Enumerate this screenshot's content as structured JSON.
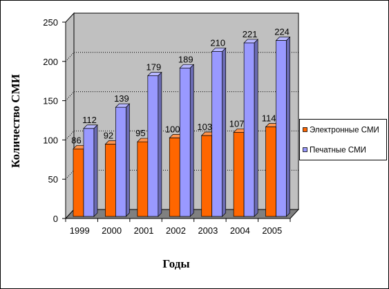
{
  "chart_data": {
    "type": "bar",
    "three_d": true,
    "categories": [
      "1999",
      "2000",
      "2001",
      "2002",
      "2003",
      "2004",
      "2005"
    ],
    "series": [
      {
        "name": "Электронные СМИ",
        "values": [
          86,
          92,
          95,
          100,
          103,
          107,
          114
        ],
        "color": "#FF6600"
      },
      {
        "name": "Печатные СМИ",
        "values": [
          112,
          139,
          179,
          189,
          210,
          221,
          224
        ],
        "color": "#9999FF"
      }
    ],
    "xlabel": "Годы",
    "ylabel": "Количество СМИ",
    "ylim": [
      0,
      250
    ],
    "y_ticks": [
      0,
      50,
      100,
      150,
      200,
      250
    ],
    "grid": true,
    "data_labels": true,
    "legend": "right",
    "wall_color": "#C0C0C0",
    "floor_color": "#808080"
  }
}
